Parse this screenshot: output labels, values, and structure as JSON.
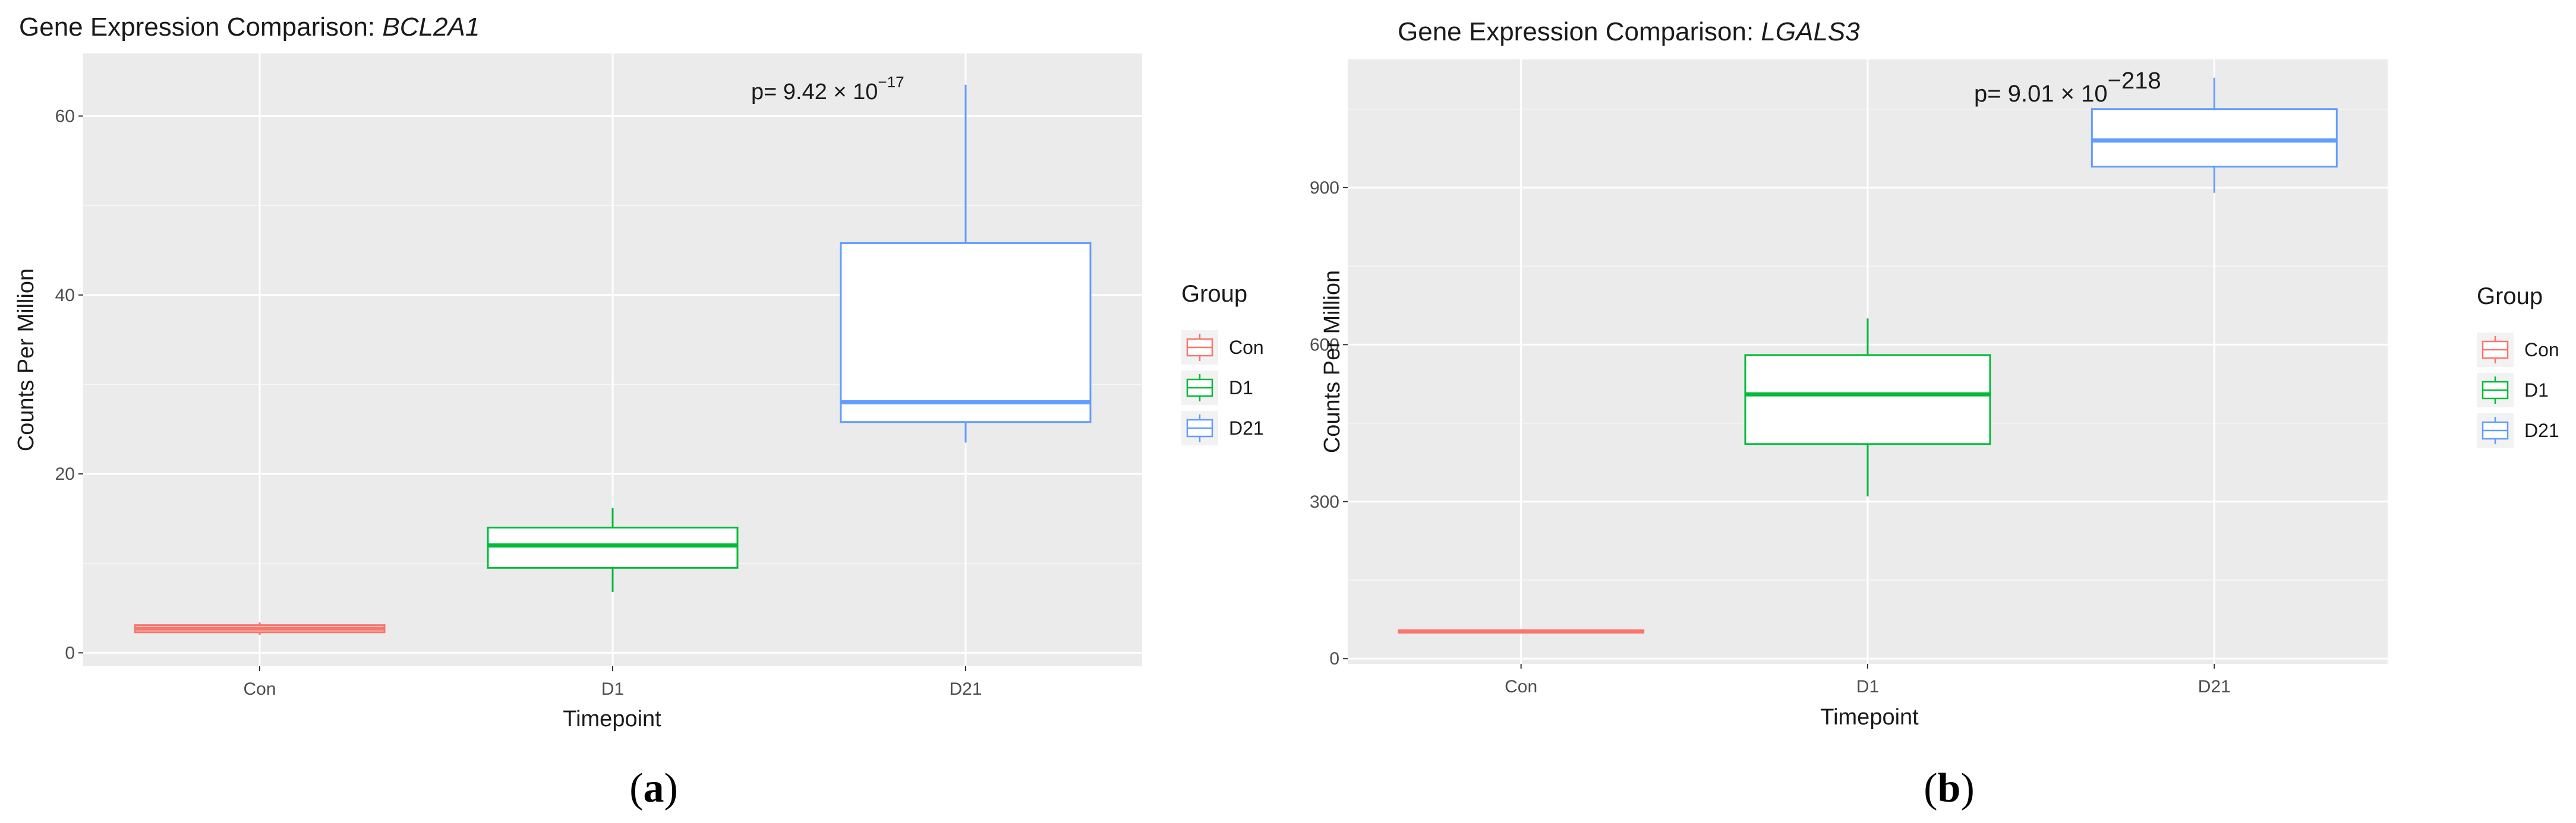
{
  "panels": [
    {
      "title_prefix": "Gene Expression Comparison: ",
      "title_gene": "BCL2A1",
      "caption_open": "(",
      "caption_letter": "a",
      "caption_close": ")",
      "pvalue_text": "p= 9.42 × 10",
      "pvalue_exp": "−17"
    },
    {
      "title_prefix": "Gene Expression Comparison: ",
      "title_gene": "LGALS3",
      "caption_open": "(",
      "caption_letter": "b",
      "caption_close": ")",
      "pvalue_text": "p= 9.01 × 10",
      "pvalue_exp": "−218"
    }
  ],
  "colors": {
    "Con": "#f8766d",
    "D1": "#00ba38",
    "D21": "#619cff",
    "panel_bg": "#ebebeb",
    "grid": "#ffffff"
  },
  "chart_data": [
    {
      "type": "box",
      "title": "Gene Expression Comparison: BCL2A1",
      "xlabel": "Timepoint",
      "ylabel": "Counts Per Million",
      "categories": [
        "Con",
        "D1",
        "D21"
      ],
      "yticks": [
        0,
        20,
        40,
        60
      ],
      "ylim": [
        -1.5,
        67
      ],
      "legend": {
        "title": "Group",
        "entries": [
          "Con",
          "D1",
          "D21"
        ],
        "position": "right"
      },
      "series": [
        {
          "name": "Con",
          "min": 2.0,
          "q1": 2.3,
          "median": 2.7,
          "q3": 3.1,
          "max": 3.4
        },
        {
          "name": "D1",
          "min": 6.8,
          "q1": 9.5,
          "median": 12.0,
          "q3": 14.0,
          "max": 16.2
        },
        {
          "name": "D21",
          "min": 23.5,
          "q1": 25.8,
          "median": 28.0,
          "q3": 45.8,
          "max": 63.5
        }
      ],
      "annotation": "p= 9.42 × 10^−17",
      "grid": true
    },
    {
      "type": "box",
      "title": "Gene Expression Comparison: LGALS3",
      "xlabel": "Timepoint",
      "ylabel": "Counts Per Million",
      "categories": [
        "Con",
        "D1",
        "D21"
      ],
      "yticks": [
        0,
        300,
        600,
        900
      ],
      "ylim": [
        -10,
        1145
      ],
      "legend": {
        "title": "Group",
        "entries": [
          "Con",
          "D1",
          "D21"
        ],
        "position": "right"
      },
      "series": [
        {
          "name": "Con",
          "min": 48,
          "q1": 50,
          "median": 52,
          "q3": 54,
          "max": 56
        },
        {
          "name": "D1",
          "min": 310,
          "q1": 410,
          "median": 505,
          "q3": 580,
          "max": 650
        },
        {
          "name": "D21",
          "min": 890,
          "q1": 940,
          "median": 990,
          "q3": 1050,
          "max": 1110
        }
      ],
      "annotation": "p= 9.01 × 10^−218",
      "grid": true
    }
  ]
}
